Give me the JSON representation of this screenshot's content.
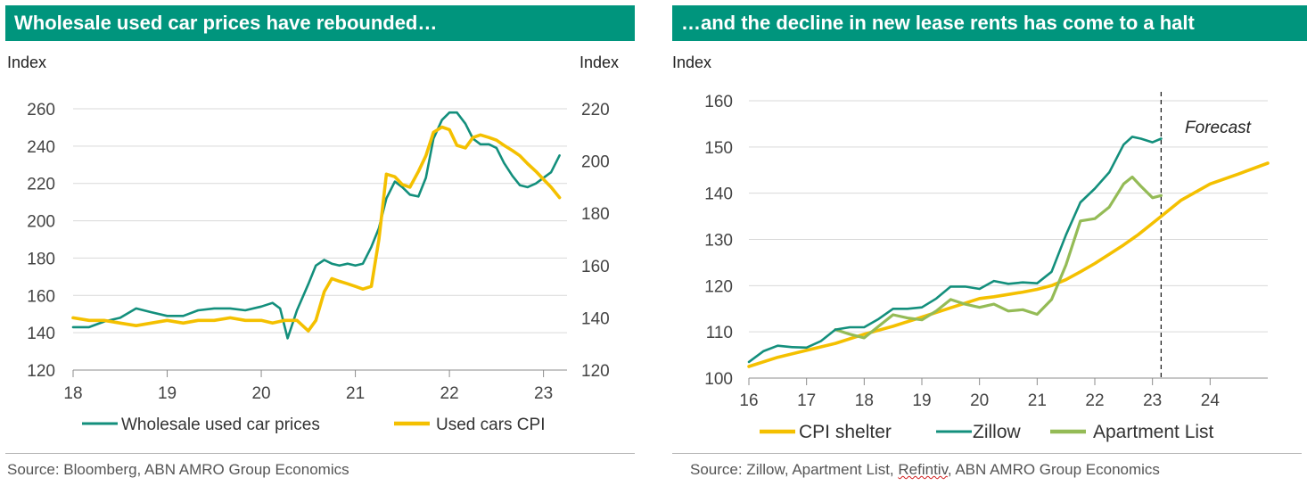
{
  "panels": [
    {
      "title": "Wholesale used car prices have rebounded…",
      "source": "Source: Bloomberg, ABN AMRO Group Economics"
    },
    {
      "title": "…and the decline in new lease rents has come to a halt",
      "source_parts": [
        "Source: Zillow, Apartment List, ",
        "Refintiv",
        ", ABN AMRO Group Economics"
      ]
    }
  ],
  "colors": {
    "teal": "#138f7c",
    "yellow": "#f4c000",
    "lightgreen": "#94bb56",
    "grid": "#d9d9d9",
    "header": "#00957d"
  },
  "chart_data": [
    {
      "type": "line",
      "title": "Wholesale used car prices have rebounded…",
      "ylabel_left": "Index",
      "ylabel_right": "Index",
      "xlim": [
        2018,
        2023.25
      ],
      "ylim_left": [
        120,
        260
      ],
      "ylim_right": [
        120,
        220
      ],
      "xticks": [
        2018,
        2019,
        2020,
        2021,
        2022,
        2023
      ],
      "xtick_labels": [
        "18",
        "19",
        "20",
        "21",
        "22",
        "23"
      ],
      "yticks_left": [
        120,
        140,
        160,
        180,
        200,
        220,
        240,
        260
      ],
      "yticks_right": [
        120,
        140,
        160,
        180,
        200,
        220
      ],
      "grid": "horizontal",
      "legend": "bottom",
      "series": [
        {
          "name": "Wholesale used car prices",
          "axis": "left",
          "color": "#138f7c",
          "x": [
            2018.0,
            2018.17,
            2018.33,
            2018.5,
            2018.67,
            2018.83,
            2019.0,
            2019.17,
            2019.33,
            2019.5,
            2019.67,
            2019.83,
            2020.0,
            2020.12,
            2020.2,
            2020.28,
            2020.38,
            2020.5,
            2020.58,
            2020.67,
            2020.75,
            2020.83,
            2020.92,
            2021.0,
            2021.08,
            2021.17,
            2021.25,
            2021.33,
            2021.42,
            2021.5,
            2021.58,
            2021.67,
            2021.75,
            2021.83,
            2021.92,
            2022.0,
            2022.08,
            2022.17,
            2022.25,
            2022.33,
            2022.42,
            2022.5,
            2022.58,
            2022.67,
            2022.75,
            2022.83,
            2022.92,
            2023.0,
            2023.08,
            2023.17
          ],
          "y": [
            143,
            143,
            146,
            148,
            153,
            151,
            149,
            149,
            152,
            153,
            153,
            152,
            154,
            156,
            153,
            137,
            152,
            166,
            176,
            179,
            177,
            176,
            177,
            176,
            177,
            186,
            196,
            212,
            221,
            218,
            214,
            213,
            223,
            244,
            254,
            258,
            258,
            252,
            244,
            241,
            241,
            239,
            231,
            224,
            219,
            218,
            220,
            223,
            226,
            235
          ]
        },
        {
          "name": "Used cars CPI",
          "axis": "right",
          "color": "#f4c000",
          "x": [
            2018.0,
            2018.17,
            2018.33,
            2018.5,
            2018.67,
            2018.83,
            2019.0,
            2019.17,
            2019.33,
            2019.5,
            2019.67,
            2019.83,
            2020.0,
            2020.12,
            2020.25,
            2020.38,
            2020.5,
            2020.58,
            2020.67,
            2020.75,
            2020.83,
            2020.92,
            2021.0,
            2021.08,
            2021.17,
            2021.25,
            2021.33,
            2021.42,
            2021.5,
            2021.58,
            2021.67,
            2021.75,
            2021.83,
            2021.92,
            2022.0,
            2022.08,
            2022.17,
            2022.25,
            2022.33,
            2022.42,
            2022.5,
            2022.58,
            2022.67,
            2022.75,
            2022.83,
            2022.92,
            2023.0,
            2023.08,
            2023.17
          ],
          "y": [
            140,
            139,
            139,
            138,
            137,
            138,
            139,
            138,
            139,
            139,
            140,
            139,
            139,
            138,
            139,
            139,
            135,
            139,
            150,
            155,
            154,
            153,
            152,
            151,
            152,
            170,
            195,
            194,
            191,
            190,
            196,
            202,
            211,
            213,
            212,
            206,
            205,
            209,
            210,
            209,
            208,
            206,
            204,
            202,
            199,
            196,
            193,
            190,
            186
          ]
        }
      ]
    },
    {
      "type": "line",
      "title": "…and the decline in new lease rents has come to a halt",
      "ylabel": "Index",
      "xlim": [
        2016,
        2025
      ],
      "ylim": [
        100,
        160
      ],
      "xticks": [
        2016,
        2017,
        2018,
        2019,
        2020,
        2021,
        2022,
        2023,
        2024
      ],
      "xtick_labels": [
        "16",
        "17",
        "18",
        "19",
        "20",
        "21",
        "22",
        "23",
        "24"
      ],
      "yticks": [
        100,
        110,
        120,
        130,
        140,
        150,
        160
      ],
      "grid": "horizontal",
      "legend": "bottom",
      "annotation": {
        "text": "Forecast",
        "x": 2023.15
      },
      "series": [
        {
          "name": "CPI shelter",
          "color": "#f4c000",
          "x": [
            2016,
            2016.5,
            2017,
            2017.5,
            2018,
            2018.5,
            2019,
            2019.5,
            2020,
            2020.25,
            2020.5,
            2020.75,
            2021,
            2021.25,
            2021.5,
            2021.75,
            2022,
            2022.25,
            2022.5,
            2022.75,
            2023,
            2023.15,
            2023.5,
            2024,
            2024.5,
            2025
          ],
          "y": [
            102.5,
            104.5,
            106,
            107.5,
            109.5,
            111.2,
            113.2,
            115.2,
            117.2,
            117.6,
            118.1,
            118.6,
            119.2,
            120,
            121.3,
            123,
            124.8,
            126.8,
            128.8,
            131,
            133.5,
            135,
            138.5,
            142,
            144.2,
            146.5
          ]
        },
        {
          "name": "Zillow",
          "color": "#138f7c",
          "x": [
            2016,
            2016.25,
            2016.5,
            2016.75,
            2017,
            2017.25,
            2017.5,
            2017.75,
            2018,
            2018.25,
            2018.5,
            2018.75,
            2019,
            2019.25,
            2019.5,
            2019.75,
            2020,
            2020.25,
            2020.5,
            2020.75,
            2021,
            2021.25,
            2021.5,
            2021.75,
            2022,
            2022.25,
            2022.5,
            2022.65,
            2022.8,
            2023,
            2023.15
          ],
          "y": [
            103.5,
            105.8,
            107,
            106.7,
            106.6,
            108,
            110.5,
            111,
            111,
            112.8,
            115,
            115,
            115.3,
            117.2,
            119.8,
            119.8,
            119.3,
            121,
            120.4,
            120.7,
            120.5,
            123,
            131,
            138,
            141,
            144.5,
            150.5,
            152.2,
            151.8,
            151,
            151.8
          ]
        },
        {
          "name": "Apartment List",
          "color": "#94bb56",
          "x": [
            2017.5,
            2017.75,
            2018,
            2018.25,
            2018.5,
            2018.75,
            2019,
            2019.25,
            2019.5,
            2019.75,
            2020,
            2020.25,
            2020.5,
            2020.75,
            2021,
            2021.25,
            2021.5,
            2021.75,
            2022,
            2022.25,
            2022.5,
            2022.65,
            2022.8,
            2023,
            2023.15
          ],
          "y": [
            110.5,
            109.5,
            108.7,
            111.2,
            113.7,
            113,
            112.6,
            114.5,
            117,
            116,
            115.3,
            116,
            114.5,
            114.8,
            113.8,
            117,
            124.5,
            134,
            134.5,
            137,
            142,
            143.5,
            141.5,
            139,
            139.5
          ]
        }
      ]
    }
  ]
}
